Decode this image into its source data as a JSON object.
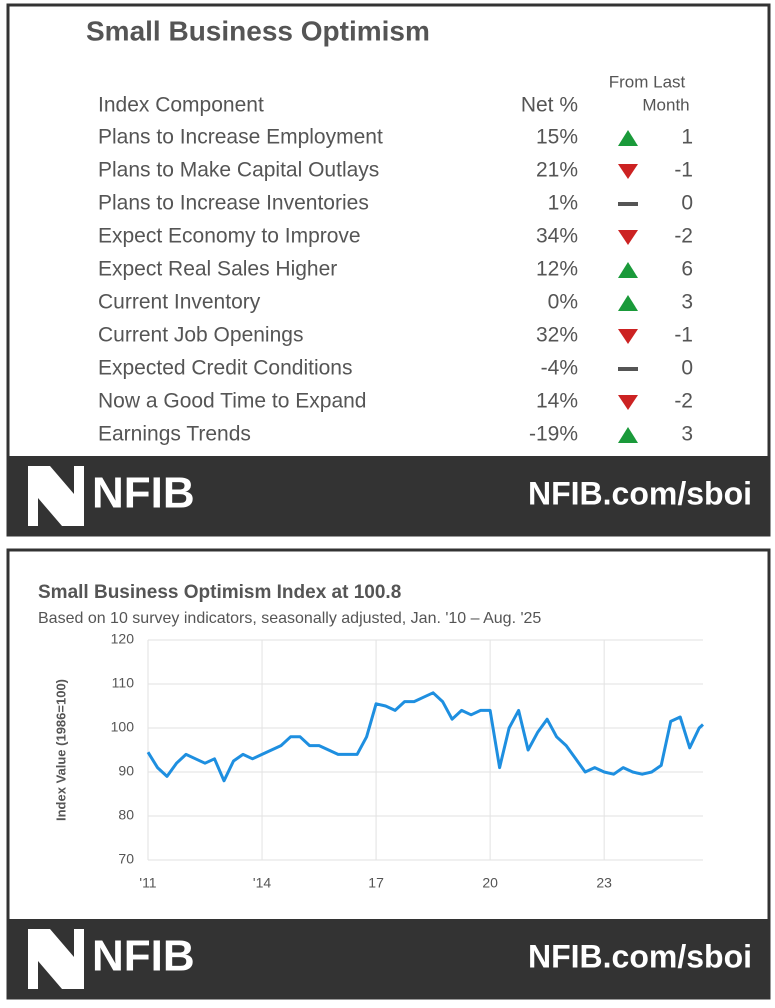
{
  "table": {
    "title": "Small Business Optimism",
    "header": {
      "component": "Index Component",
      "net": "Net %",
      "change_1": "From Last",
      "change_2": "Month"
    },
    "rows": [
      [
        "Plans to Increase Employment",
        "15%",
        1
      ],
      [
        "Plans to Make Capital Outlays",
        "21%",
        -1
      ],
      [
        "Plans to Increase Inventories",
        "1%",
        0
      ],
      [
        "Expect Economy to Improve",
        "34%",
        -2
      ],
      [
        "Expect Real Sales Higher",
        "12%",
        6
      ],
      [
        "Current Inventory",
        "0%",
        3
      ],
      [
        "Current Job Openings",
        "32%",
        -1
      ],
      [
        "Expected Credit Conditions",
        "-4%",
        0
      ],
      [
        "Now a Good Time to Expand",
        "14%",
        -2
      ],
      [
        "Earnings Trends",
        "-19%",
        3
      ]
    ]
  },
  "footer": {
    "logo": "NFIB",
    "url": "NFIB.com/sboi"
  },
  "chart_data": {
    "type": "line",
    "title": "Small Business Optimism Index at 100.8",
    "subtitle": "Based on 10 survey indicators, seasonally adjusted,  Jan. '10 – Aug. '25",
    "y_label": "Index Value (1986=100)",
    "color": "#1e8fe0",
    "grid": true,
    "x": [
      2011.0,
      2011.25,
      2011.5,
      2011.75,
      2012.0,
      2012.25,
      2012.5,
      2012.75,
      2013.0,
      2013.25,
      2013.5,
      2013.75,
      2014.0,
      2014.25,
      2014.5,
      2014.75,
      2015.0,
      2015.25,
      2015.5,
      2015.75,
      2016.0,
      2016.25,
      2016.5,
      2016.75,
      2017.0,
      2017.25,
      2017.5,
      2017.75,
      2018.0,
      2018.25,
      2018.5,
      2018.75,
      2019.0,
      2019.25,
      2019.5,
      2019.75,
      2020.0,
      2020.25,
      2020.5,
      2020.75,
      2021.0,
      2021.25,
      2021.5,
      2021.75,
      2022.0,
      2022.25,
      2022.5,
      2022.75,
      2023.0,
      2023.25,
      2023.5,
      2023.75,
      2024.0,
      2024.25,
      2024.5,
      2024.75,
      2025.0,
      2025.25,
      2025.5,
      2025.6
    ],
    "values": [
      94.5,
      91,
      89,
      92,
      94,
      93,
      92,
      93,
      88,
      92.5,
      94,
      93,
      94,
      95,
      96,
      98,
      98,
      96,
      96,
      95,
      94,
      94,
      94,
      98,
      105.5,
      105,
      104,
      106,
      106,
      107,
      108,
      106,
      102,
      104,
      103,
      104,
      104,
      91,
      100,
      104,
      95,
      99,
      102,
      98,
      96,
      93,
      90,
      91,
      90,
      89.5,
      91,
      90,
      89.5,
      90,
      91.5,
      101.5,
      102.5,
      95.5,
      100,
      100.8
    ],
    "xlim": [
      2011,
      2025.6
    ],
    "xticks": [
      {
        "value": 2011,
        "label": "'11"
      },
      {
        "value": 2014,
        "label": "'14"
      },
      {
        "value": 2017,
        "label": "17"
      },
      {
        "value": 2020,
        "label": "20"
      },
      {
        "value": 2023,
        "label": "23"
      }
    ],
    "ylim": [
      70,
      120
    ],
    "yticks": [
      70,
      80,
      90,
      100,
      110,
      120
    ]
  }
}
